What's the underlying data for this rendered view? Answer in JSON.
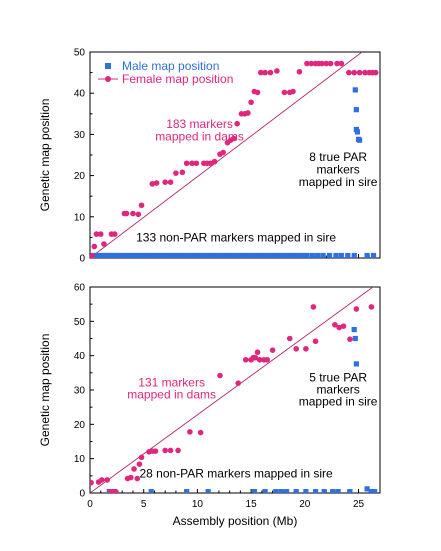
{
  "chart_data": [
    {
      "type": "scatter",
      "panel": "top",
      "xlim": [
        0,
        27
      ],
      "ylim": [
        0,
        50
      ],
      "yticks": [
        0,
        10,
        20,
        30,
        40,
        50
      ],
      "ylabel": "Genetic map position",
      "legend": {
        "placement": "top-left",
        "entries": [
          {
            "label": "Male map position",
            "marker": "square",
            "color": "#2f6fe0"
          },
          {
            "label": "Female map position",
            "marker": "circle-line",
            "color": "#e0267d"
          }
        ]
      },
      "fit_line": {
        "x": [
          0,
          27
        ],
        "y": [
          0,
          53.3
        ],
        "color": "#b0266e"
      },
      "annotations": [
        {
          "text": "183 markers",
          "color": "#e0267d",
          "x": 10.2,
          "y": 31.5
        },
        {
          "text": "mapped in dams",
          "color": "#e0267d",
          "x": 10.2,
          "y": 28.5
        },
        {
          "text": "8 true PAR",
          "color": "#000000",
          "x": 23.1,
          "y": 23.5
        },
        {
          "text": "markers",
          "color": "#000000",
          "x": 23.1,
          "y": 20.5
        },
        {
          "text": "mapped in sire",
          "color": "#000000",
          "x": 23.1,
          "y": 17.5
        },
        {
          "text": "133 non-PAR markers mapped in sire",
          "color": "#000000",
          "x": 13.6,
          "y": 4.0
        }
      ],
      "series": [
        {
          "name": "Male map position",
          "marker": "square",
          "x": [
            0.3,
            0.6,
            0.8,
            1.0,
            1.2,
            1.4,
            1.6,
            1.8,
            2.0,
            2.2,
            2.4,
            2.6,
            2.9,
            3.2,
            3.5,
            3.8,
            4.1,
            4.3,
            4.6,
            4.9,
            5.1,
            5.4,
            5.7,
            6.0,
            6.2,
            6.5,
            6.8,
            7.0,
            7.3,
            7.6,
            7.9,
            8.2,
            8.5,
            8.8,
            9.1,
            9.4,
            9.7,
            10.0,
            10.3,
            10.6,
            10.9,
            11.2,
            11.5,
            11.8,
            12.1,
            12.4,
            12.7,
            13.0,
            13.3,
            13.6,
            13.9,
            14.2,
            14.5,
            14.8,
            15.1,
            15.4,
            15.7,
            16.0,
            16.3,
            16.6,
            16.9,
            17.2,
            17.5,
            17.8,
            18.1,
            18.4,
            18.7,
            19.0,
            19.3,
            19.6,
            19.9,
            20.2,
            20.7,
            21.2,
            21.7,
            22.3,
            22.9,
            23.4,
            24.0,
            24.6,
            25.8,
            26.4,
            24.7,
            24.8,
            24.8,
            24.9,
            25.0,
            25.1
          ],
          "y": [
            0.6,
            0.6,
            0.6,
            0.6,
            0.6,
            0.6,
            0.6,
            0.6,
            0.6,
            0.6,
            0.6,
            0.6,
            0.6,
            0.6,
            0.6,
            0.6,
            0.6,
            0.6,
            0.6,
            0.6,
            0.6,
            0.6,
            0.6,
            0.6,
            0.6,
            0.6,
            0.6,
            0.6,
            0.6,
            0.6,
            0.6,
            0.6,
            0.6,
            0.6,
            0.6,
            0.6,
            0.6,
            0.6,
            0.6,
            0.6,
            0.6,
            0.6,
            0.6,
            0.6,
            0.6,
            0.6,
            0.6,
            0.6,
            0.6,
            0.6,
            0.6,
            0.6,
            0.6,
            0.6,
            0.6,
            0.6,
            0.6,
            0.6,
            0.6,
            0.6,
            0.6,
            0.6,
            0.6,
            0.6,
            0.6,
            0.6,
            0.6,
            0.6,
            0.6,
            0.6,
            0.6,
            0.6,
            0.6,
            0.6,
            0.6,
            0.6,
            0.6,
            0.6,
            0.6,
            0.6,
            0.6,
            0.6,
            40.8,
            36.0,
            31.2,
            30.6,
            28.8,
            28.6
          ]
        },
        {
          "name": "Female map position",
          "marker": "circle",
          "x": [
            0.2,
            0.4,
            0.6,
            1.0,
            1.3,
            2.0,
            2.3,
            3.2,
            3.4,
            4.0,
            4.5,
            4.8,
            5.8,
            6.2,
            7.0,
            7.5,
            8.0,
            8.6,
            9.0,
            9.5,
            9.9,
            10.6,
            10.9,
            11.2,
            11.6,
            12.1,
            12.4,
            12.8,
            13.1,
            13.4,
            13.7,
            14.1,
            14.4,
            14.7,
            15.0,
            15.3,
            15.6,
            15.9,
            16.3,
            16.8,
            17.4,
            18.1,
            18.6,
            18.9,
            19.5,
            20.2,
            20.6,
            21.0,
            21.3,
            21.6,
            22.0,
            22.4,
            23.0,
            23.4,
            24.1,
            24.6,
            25.1,
            25.6,
            26.0,
            26.3,
            26.6
          ],
          "y": [
            0.6,
            2.8,
            5.8,
            5.8,
            3.4,
            5.8,
            5.8,
            10.8,
            10.8,
            10.8,
            10.6,
            12.8,
            18.0,
            18.2,
            18.4,
            18.4,
            20.6,
            20.8,
            23.0,
            23.0,
            23.0,
            23.0,
            23.0,
            23.0,
            23.4,
            25.2,
            25.6,
            28.0,
            28.6,
            29.0,
            32.6,
            35.0,
            35.0,
            35.2,
            37.8,
            40.4,
            40.2,
            45.0,
            45.0,
            45.0,
            45.4,
            40.2,
            40.2,
            40.4,
            45.2,
            47.2,
            47.2,
            47.2,
            47.2,
            47.2,
            47.2,
            47.2,
            47.2,
            47.2,
            45.0,
            45.0,
            45.0,
            45.0,
            45.0,
            45.0,
            45.0
          ]
        }
      ]
    },
    {
      "type": "scatter",
      "panel": "bottom",
      "xlim": [
        0,
        27
      ],
      "ylim": [
        0,
        60
      ],
      "yticks": [
        0,
        10,
        20,
        30,
        40,
        50,
        60
      ],
      "xticks": [
        0,
        5,
        10,
        15,
        20,
        25
      ],
      "xlabel": "Assembly position (Mb)",
      "ylabel": "Genetic map position",
      "fit_line": {
        "x": [
          0,
          27
        ],
        "y": [
          0,
          61.5
        ],
        "color": "#b0266e"
      },
      "annotations": [
        {
          "text": "131 markers",
          "color": "#e0267d",
          "x": 7.6,
          "y": 31.0
        },
        {
          "text": "mapped in dams",
          "color": "#e0267d",
          "x": 7.6,
          "y": 27.5
        },
        {
          "text": "5 true PAR",
          "color": "#000000",
          "x": 23.1,
          "y": 32.5
        },
        {
          "text": "markers",
          "color": "#000000",
          "x": 23.1,
          "y": 29.0
        },
        {
          "text": "mapped in sire",
          "color": "#000000",
          "x": 23.1,
          "y": 25.5
        },
        {
          "text": "28 non-PAR markers mapped in sire",
          "color": "#000000",
          "x": 13.6,
          "y": 4.5
        }
      ],
      "series": [
        {
          "name": "Male map position",
          "marker": "square",
          "x": [
            1.8,
            2.2,
            5.7,
            9.0,
            11.0,
            15.3,
            16.3,
            17.3,
            17.8,
            18.3,
            19.2,
            20.1,
            21.0,
            21.8,
            22.6,
            23.1,
            24.2,
            25.8,
            26.2,
            26.5,
            24.6,
            24.7,
            24.8
          ],
          "y": [
            0.4,
            0.4,
            0.4,
            0.4,
            0.4,
            0.4,
            0.4,
            0.4,
            0.4,
            0.4,
            0.4,
            0.4,
            0.4,
            0.4,
            0.4,
            0.4,
            0.4,
            1.2,
            0.4,
            0.4,
            47.6,
            45.0,
            37.6
          ],
          "note": "Male 1-20: non-PAR markers at bottom; last 3: true PAR markers"
        },
        {
          "name": "Female map position",
          "marker": "circle",
          "x": [
            0.1,
            0.8,
            1.1,
            1.6,
            1.9,
            2.2,
            2.4,
            3.5,
            3.8,
            4.1,
            4.4,
            4.6,
            4.8,
            5.5,
            5.8,
            6.1,
            7.0,
            7.5,
            8.2,
            9.3,
            10.3,
            12.1,
            13.8,
            14.5,
            15.0,
            15.2,
            15.4,
            15.6,
            15.8,
            16.2,
            16.5,
            17.0,
            18.6,
            19.2,
            20.1,
            20.8,
            21.0,
            22.8,
            23.2,
            23.6,
            24.2,
            24.8,
            26.2
          ],
          "y": [
            3.0,
            3.2,
            3.8,
            3.8,
            0.4,
            0.4,
            0.4,
            4.2,
            4.5,
            7.0,
            4.2,
            8.4,
            10.4,
            12.0,
            12.2,
            12.2,
            12.4,
            12.4,
            12.4,
            17.8,
            17.6,
            34.2,
            32.0,
            38.8,
            38.8,
            39.4,
            39.4,
            41.0,
            38.8,
            38.8,
            38.8,
            41.6,
            45.0,
            42.0,
            42.0,
            54.2,
            44.2,
            49.0,
            48.2,
            48.6,
            44.8,
            53.6,
            54.2
          ]
        }
      ]
    }
  ]
}
